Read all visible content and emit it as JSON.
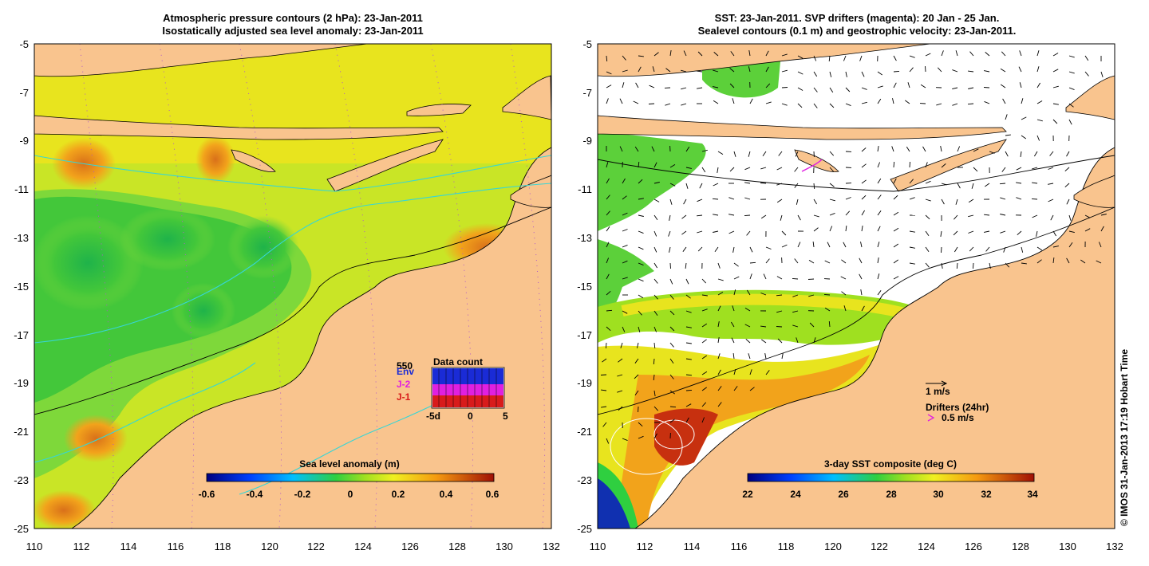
{
  "left_panel": {
    "title_line1": "Atmospheric pressure contours (2 hPa): 23-Jan-2011",
    "title_line2": "Isostatically adjusted sea level anomaly: 23-Jan-2011",
    "x_ticks": [
      "110",
      "112",
      "114",
      "116",
      "118",
      "120",
      "122",
      "124",
      "126",
      "128",
      "130",
      "132"
    ],
    "y_ticks": [
      "-5",
      "-7",
      "-9",
      "-11",
      "-13",
      "-15",
      "-17",
      "-19",
      "-21",
      "-23",
      "-25"
    ],
    "colorbar": {
      "label": "Sea level anomaly (m)",
      "ticks": [
        "-0.6",
        "-0.4",
        "-0.2",
        "0",
        "0.2",
        "0.4",
        "0.6"
      ]
    },
    "data_count": {
      "title": "Data count",
      "max_label": "550",
      "legend": [
        {
          "name": "Env",
          "color": "#1a2bd6"
        },
        {
          "name": "J-2",
          "color": "#e020e0"
        },
        {
          "name": "J-1",
          "color": "#d81b1b"
        }
      ],
      "x_ticks": [
        "-5d",
        "0",
        "5"
      ]
    }
  },
  "right_panel": {
    "title_line1": "SST: 23-Jan-2011. SVP drifters (magenta): 20 Jan - 25 Jan.",
    "title_line2": "Sealevel contours (0.1 m) and geostrophic velocity: 23-Jan-2011.",
    "x_ticks": [
      "110",
      "112",
      "114",
      "116",
      "118",
      "120",
      "122",
      "124",
      "126",
      "128",
      "130",
      "132"
    ],
    "y_ticks": [
      "-5",
      "-7",
      "-9",
      "-11",
      "-13",
      "-15",
      "-17",
      "-19",
      "-21",
      "-23",
      "-25"
    ],
    "velocity_scale": "1 m/s",
    "drifters_label": "Drifters (24hr)",
    "drifters_speed": "0.5 m/s",
    "colorbar": {
      "label": "3-day SST composite (deg C)",
      "ticks": [
        "22",
        "24",
        "26",
        "28",
        "30",
        "32",
        "34"
      ]
    }
  },
  "side_credit": "© IMOS 31-Jan-2013 17:19 Hobart Time",
  "colors": {
    "land": "#f9c48e",
    "ocean_green": "#5cd03a",
    "ocean_yellow": "#e8e41e",
    "ocean_orange": "#f2a31b",
    "sst_red": "#c7300f",
    "contour_cyan": "#36d6d6"
  }
}
